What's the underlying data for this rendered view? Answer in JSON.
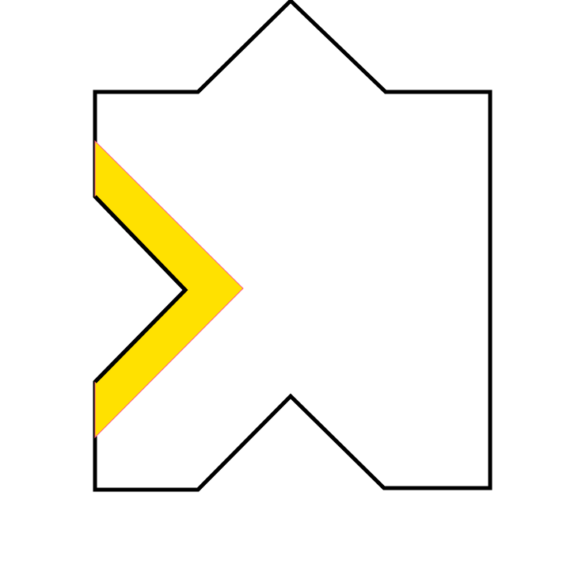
{
  "shape": {
    "outline_color": "#000000",
    "fill_color": "#ffffff",
    "highlight_fill": "#ffe100",
    "highlight_edge": "#ff5a8a"
  }
}
